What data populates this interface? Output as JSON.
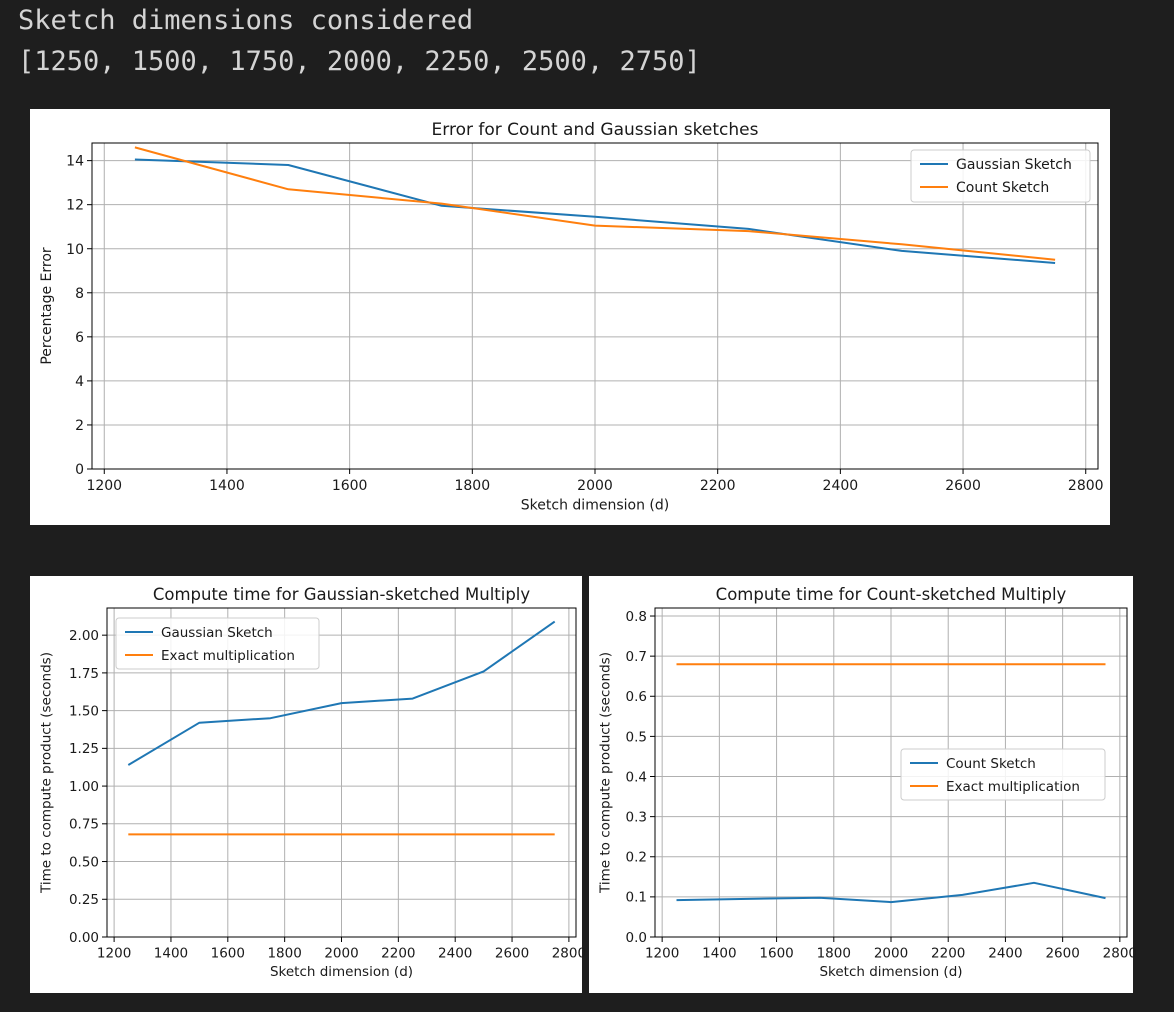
{
  "console": {
    "line1": "Sketch dimensions considered",
    "line2": "[1250, 1500, 1750, 2000, 2250, 2500, 2750]"
  },
  "colors": {
    "blue": "#1f77b4",
    "orange": "#ff7f0e",
    "grid": "#b0b0b0"
  },
  "chart_data": [
    {
      "type": "line",
      "title": "Error for Count and Gaussian sketches",
      "xlabel": "Sketch dimension (d)",
      "ylabel": "Percentage Error",
      "xlim": [
        1180,
        2820
      ],
      "ylim": [
        0,
        14.8
      ],
      "xticks": [
        1200,
        1400,
        1600,
        1800,
        2000,
        2200,
        2400,
        2600,
        2800
      ],
      "yticks": [
        0,
        2,
        4,
        6,
        8,
        10,
        12,
        14
      ],
      "ytick_labels": [
        "0",
        "2",
        "4",
        "6",
        "8",
        "10",
        "12",
        "14"
      ],
      "grid": true,
      "legend_position": "upper right",
      "x": [
        1250,
        1500,
        1750,
        2000,
        2250,
        2500,
        2750
      ],
      "series": [
        {
          "name": "Gaussian Sketch",
          "color": "#1f77b4",
          "values": [
            14.05,
            13.8,
            11.95,
            11.45,
            10.9,
            9.9,
            9.35
          ]
        },
        {
          "name": "Count Sketch",
          "color": "#ff7f0e",
          "values": [
            14.6,
            12.7,
            12.05,
            11.05,
            10.8,
            10.2,
            9.5
          ]
        }
      ]
    },
    {
      "type": "line",
      "title": "Compute time for Gaussian-sketched Multiply",
      "xlabel": "Sketch dimension (d)",
      "ylabel": "Time to compute product (seconds)",
      "xlim": [
        1175,
        2825
      ],
      "ylim": [
        0,
        2.18
      ],
      "xticks": [
        1200,
        1400,
        1600,
        1800,
        2000,
        2200,
        2400,
        2600,
        2800
      ],
      "yticks": [
        0,
        0.25,
        0.5,
        0.75,
        1.0,
        1.25,
        1.5,
        1.75,
        2.0
      ],
      "ytick_labels": [
        "0.00",
        "0.25",
        "0.50",
        "0.75",
        "1.00",
        "1.25",
        "1.50",
        "1.75",
        "2.00"
      ],
      "grid": true,
      "legend_position": "upper left",
      "x": [
        1250,
        1500,
        1750,
        2000,
        2250,
        2500,
        2750
      ],
      "series": [
        {
          "name": "Gaussian Sketch",
          "color": "#1f77b4",
          "values": [
            1.14,
            1.42,
            1.45,
            1.55,
            1.58,
            1.76,
            2.09
          ]
        },
        {
          "name": "Exact multiplication",
          "color": "#ff7f0e",
          "values": [
            0.68,
            0.68,
            0.68,
            0.68,
            0.68,
            0.68,
            0.68
          ]
        }
      ]
    },
    {
      "type": "line",
      "title": "Compute time for Count-sketched Multiply",
      "xlabel": "Sketch dimension (d)",
      "ylabel": "Time to compute product (seconds)",
      "xlim": [
        1175,
        2825
      ],
      "ylim": [
        0,
        0.82
      ],
      "xticks": [
        1200,
        1400,
        1600,
        1800,
        2000,
        2200,
        2400,
        2600,
        2800
      ],
      "yticks": [
        0,
        0.1,
        0.2,
        0.3,
        0.4,
        0.5,
        0.6,
        0.7,
        0.8
      ],
      "ytick_labels": [
        "0.0",
        "0.1",
        "0.2",
        "0.3",
        "0.4",
        "0.5",
        "0.6",
        "0.7",
        "0.8"
      ],
      "grid": true,
      "legend_position": "center right",
      "x": [
        1250,
        1500,
        1750,
        2000,
        2250,
        2500,
        2750
      ],
      "series": [
        {
          "name": "Count Sketch",
          "color": "#1f77b4",
          "values": [
            0.092,
            0.095,
            0.098,
            0.087,
            0.105,
            0.135,
            0.097
          ]
        },
        {
          "name": "Exact multiplication",
          "color": "#ff7f0e",
          "values": [
            0.68,
            0.68,
            0.68,
            0.68,
            0.68,
            0.68,
            0.68
          ]
        }
      ]
    }
  ]
}
